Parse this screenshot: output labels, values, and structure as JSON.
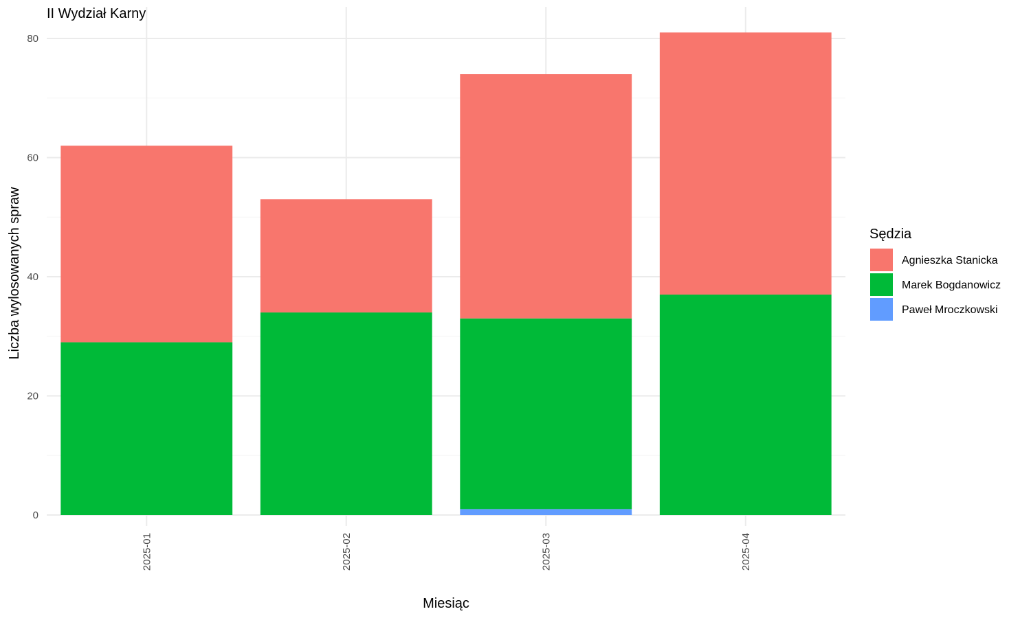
{
  "chart_data": {
    "type": "bar",
    "stacked": true,
    "title": "II Wydział Karny",
    "xlabel": "Miesiąc",
    "ylabel": "Liczba wylosowanych spraw",
    "categories": [
      "2025-01",
      "2025-02",
      "2025-03",
      "2025-04"
    ],
    "ylim": [
      0,
      85
    ],
    "yticks": [
      0,
      20,
      40,
      60,
      80
    ],
    "grid": true,
    "legend": {
      "title": "Sędzia",
      "position": "right"
    },
    "series": [
      {
        "name": "Paweł Mroczkowski",
        "color": "#619CFF",
        "values": [
          0,
          0,
          1,
          0
        ]
      },
      {
        "name": "Marek Bogdanowicz",
        "color": "#00BA38",
        "values": [
          29,
          34,
          32,
          37
        ]
      },
      {
        "name": "Agnieszka Stanicka",
        "color": "#F8766D",
        "values": [
          33,
          19,
          41,
          44
        ]
      }
    ],
    "legend_order": [
      "Agnieszka Stanicka",
      "Marek Bogdanowicz",
      "Paweł Mroczkowski"
    ]
  }
}
